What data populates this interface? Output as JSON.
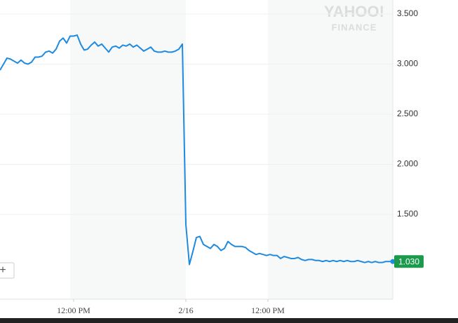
{
  "chart_data": {
    "type": "line",
    "logo": [
      "YAHOO!",
      "FINANCE"
    ],
    "button": "+",
    "color": "#1e8ae0",
    "values": [
      2.94,
      3.0,
      3.06,
      3.05,
      3.03,
      3.01,
      3.04,
      3.01,
      3.0,
      3.02,
      3.07,
      3.07,
      3.08,
      3.12,
      3.13,
      3.11,
      3.15,
      3.23,
      3.26,
      3.21,
      3.28,
      3.28,
      3.29,
      3.2,
      3.14,
      3.15,
      3.19,
      3.22,
      3.18,
      3.2,
      3.16,
      3.12,
      3.17,
      3.18,
      3.16,
      3.19,
      3.18,
      3.2,
      3.17,
      3.19,
      3.16,
      3.13,
      3.15,
      3.17,
      3.13,
      3.12,
      3.12,
      3.13,
      3.12,
      3.12,
      3.13,
      3.15,
      3.2,
      1.4,
      1.0,
      1.13,
      1.27,
      1.28,
      1.2,
      1.18,
      1.16,
      1.2,
      1.18,
      1.14,
      1.16,
      1.23,
      1.2,
      1.18,
      1.18,
      1.18,
      1.17,
      1.14,
      1.12,
      1.1,
      1.11,
      1.1,
      1.09,
      1.1,
      1.09,
      1.09,
      1.06,
      1.08,
      1.07,
      1.06,
      1.06,
      1.07,
      1.05,
      1.04,
      1.05,
      1.05,
      1.04,
      1.04,
      1.03,
      1.04,
      1.03,
      1.04,
      1.03,
      1.04,
      1.03,
      1.04,
      1.03,
      1.03,
      1.04,
      1.03,
      1.02,
      1.03,
      1.02,
      1.03,
      1.02,
      1.02,
      1.03,
      1.03,
      1.03
    ],
    "xlim": [
      0,
      112
    ],
    "xticks": [
      {
        "value": 21,
        "label": "12:00 PM"
      },
      {
        "value": 53,
        "label": "2/16"
      },
      {
        "value": 76.4,
        "label": "12:00 PM"
      }
    ],
    "ylim": [
      0.654,
      3.64
    ],
    "yticks": [
      {
        "value": 3.5,
        "label": "3.500"
      },
      {
        "value": 3.0,
        "label": "3.000"
      },
      {
        "value": 2.5,
        "label": "2.500"
      },
      {
        "value": 2.0,
        "label": "2.000"
      },
      {
        "value": 1.5,
        "label": "1.500"
      }
    ],
    "grid": true,
    "price_tag": {
      "value": 1.03,
      "label": "1.030",
      "color": "#1a9a4a"
    }
  }
}
